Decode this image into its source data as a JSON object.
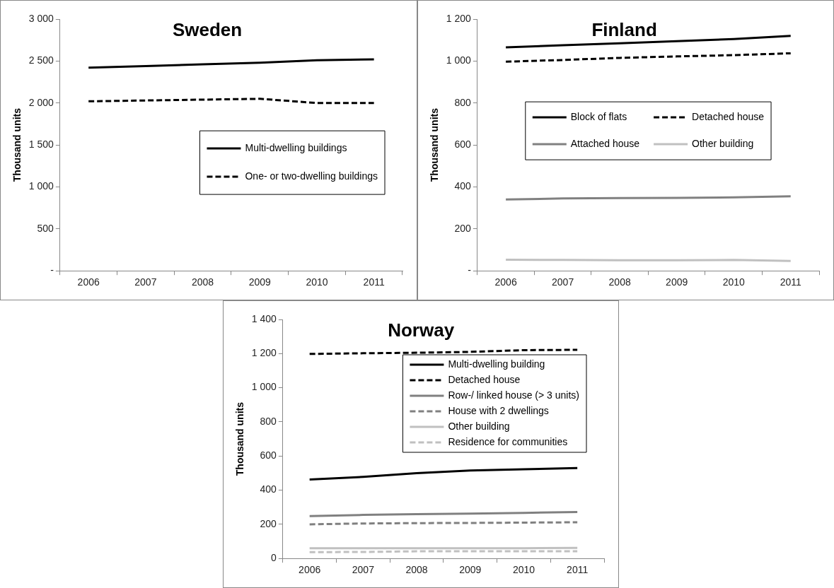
{
  "chart_data": [
    {
      "type": "line",
      "title": "Sweden",
      "ylabel": "Thousand units",
      "categories": [
        "2006",
        "2007",
        "2008",
        "2009",
        "2010",
        "2011"
      ],
      "ylim": [
        0,
        3000
      ],
      "yticks": [
        {
          "value": 0,
          "label": "-"
        },
        500,
        {
          "value": 1000,
          "label": "1 000"
        },
        {
          "value": 1500,
          "label": "1 500"
        },
        {
          "value": 2000,
          "label": "2 000"
        },
        {
          "value": 2500,
          "label": "2 500"
        },
        {
          "value": 3000,
          "label": "3 000"
        }
      ],
      "grid": false,
      "legend": "center right",
      "marker": "none",
      "series": [
        {
          "name": "Multi-dwelling buildings",
          "color": "#000000",
          "line_style": "solid",
          "values": [
            2420,
            2440,
            2460,
            2480,
            2510,
            2520
          ]
        },
        {
          "name": "One- or two-dwelling buildings",
          "color": "#000000",
          "line_style": "dashed",
          "values": [
            2020,
            2030,
            2040,
            2050,
            2000,
            2000
          ]
        }
      ]
    },
    {
      "type": "line",
      "title": "Finland",
      "ylabel": "Thousand units",
      "categories": [
        "2006",
        "2007",
        "2008",
        "2009",
        "2010",
        "2011"
      ],
      "ylim": [
        0,
        1200
      ],
      "yticks": [
        {
          "value": 0,
          "label": "-"
        },
        200,
        400,
        600,
        800,
        {
          "value": 1000,
          "label": "1 000"
        },
        {
          "value": 1200,
          "label": "1 200"
        }
      ],
      "grid": false,
      "legend": "center",
      "marker": "none",
      "series": [
        {
          "name": "Block of flats",
          "color": "#000000",
          "line_style": "solid",
          "values": [
            1065,
            1075,
            1085,
            1095,
            1105,
            1120
          ]
        },
        {
          "name": "Detached house",
          "color": "#000000",
          "line_style": "dashed",
          "values": [
            997,
            1005,
            1015,
            1022,
            1028,
            1037
          ]
        },
        {
          "name": "Attached house",
          "color": "#808080",
          "line_style": "solid",
          "values": [
            340,
            345,
            347,
            348,
            350,
            355
          ]
        },
        {
          "name": "Other building",
          "color": "#c0c0c0",
          "line_style": "solid",
          "values": [
            53,
            52,
            50,
            50,
            52,
            47
          ]
        }
      ]
    },
    {
      "type": "line",
      "title": "Norway",
      "ylabel": "Thousand units",
      "categories": [
        "2006",
        "2007",
        "2008",
        "2009",
        "2010",
        "2011"
      ],
      "ylim": [
        0,
        1400
      ],
      "yticks": [
        0,
        200,
        400,
        600,
        800,
        {
          "value": 1000,
          "label": "1 000"
        },
        {
          "value": 1200,
          "label": "1 200"
        },
        {
          "value": 1400,
          "label": "1 400"
        }
      ],
      "grid": false,
      "legend": "top right",
      "marker": "none",
      "series": [
        {
          "name": "Multi-dwelling building",
          "color": "#000000",
          "line_style": "solid",
          "values": [
            462,
            478,
            500,
            515,
            522,
            530
          ]
        },
        {
          "name": "Detached house",
          "color": "#000000",
          "line_style": "dashed",
          "values": [
            1198,
            1202,
            1205,
            1210,
            1220,
            1222
          ]
        },
        {
          "name": "Row-/ linked house (> 3 units)",
          "color": "#808080",
          "line_style": "solid",
          "values": [
            248,
            255,
            260,
            263,
            267,
            272
          ]
        },
        {
          "name": "House with 2 dwellings",
          "color": "#808080",
          "line_style": "dashed",
          "values": [
            200,
            205,
            207,
            208,
            210,
            212
          ]
        },
        {
          "name": "Other building",
          "color": "#c0c0c0",
          "line_style": "solid",
          "values": [
            60,
            60,
            60,
            60,
            60,
            62
          ]
        },
        {
          "name": "Residence for communities",
          "color": "#c0c0c0",
          "line_style": "dashed",
          "values": [
            37,
            38,
            42,
            42,
            42,
            42
          ]
        }
      ]
    }
  ]
}
